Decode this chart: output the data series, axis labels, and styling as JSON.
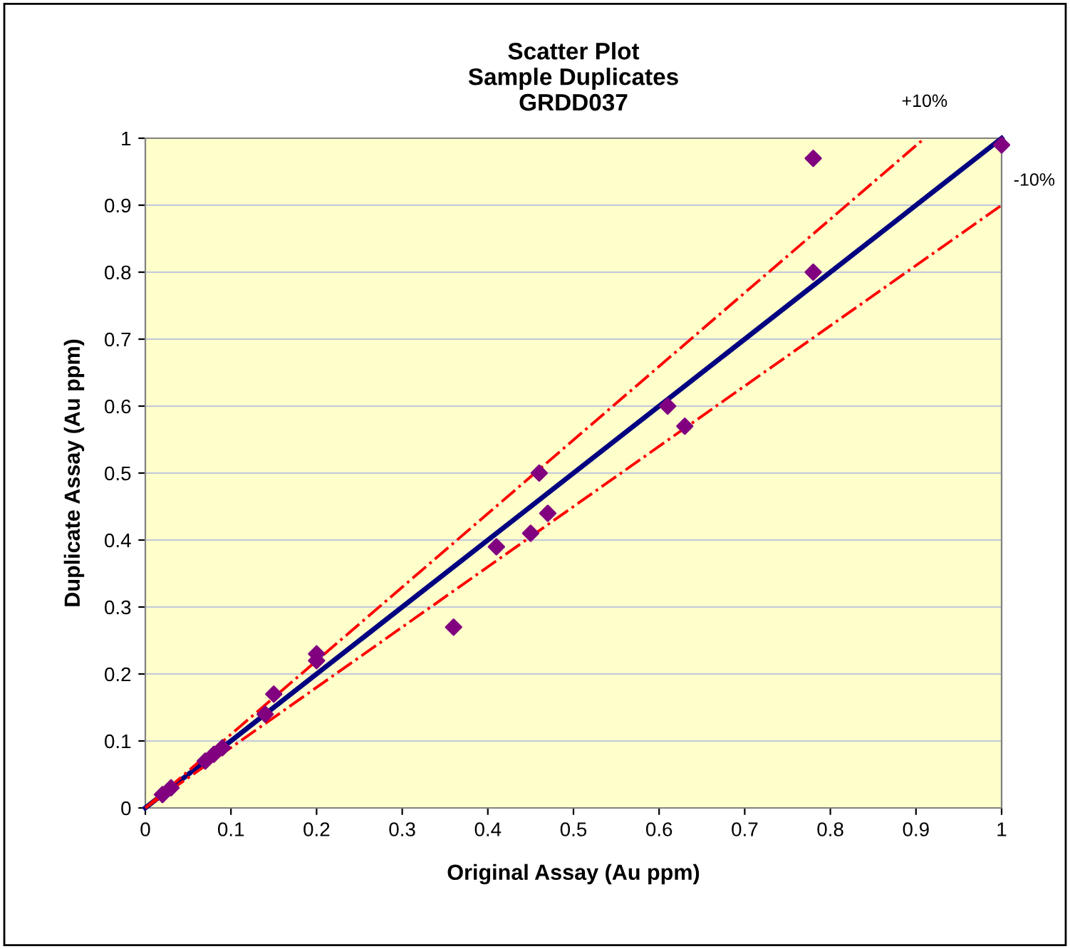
{
  "chart_data": {
    "type": "scatter",
    "title": "Scatter Plot\nSample Duplicates\nGRDD037",
    "xlabel": "Original Assay (Au ppm)",
    "ylabel": "Duplicate Assay (Au ppm)",
    "xlim": [
      0,
      1
    ],
    "ylim": [
      0,
      1
    ],
    "xticks": [
      0,
      0.1,
      0.2,
      0.3,
      0.4,
      0.5,
      0.6,
      0.7,
      0.8,
      0.9,
      1
    ],
    "yticks": [
      0,
      0.1,
      0.2,
      0.3,
      0.4,
      0.5,
      0.6,
      0.7,
      0.8,
      0.9,
      1
    ],
    "grid": "y",
    "legend": false,
    "series": [
      {
        "color": "#800080",
        "marker": "diamond",
        "x": [
          0.02,
          0.03,
          0.07,
          0.08,
          0.09,
          0.14,
          0.15,
          0.2,
          0.2,
          0.36,
          0.41,
          0.45,
          0.46,
          0.47,
          0.61,
          0.63,
          0.78,
          0.78,
          1.0
        ],
        "values": [
          0.02,
          0.03,
          0.07,
          0.08,
          0.09,
          0.14,
          0.17,
          0.22,
          0.23,
          0.27,
          0.39,
          0.41,
          0.5,
          0.44,
          0.6,
          0.57,
          0.8,
          0.97,
          0.99
        ]
      },
      {
        "type": "line",
        "color": "#000080",
        "line_style": "solid",
        "x": [
          0,
          1
        ],
        "values": [
          0,
          1
        ]
      },
      {
        "type": "line",
        "color": "#ff0000",
        "line_style": "dashdot",
        "x": [
          0,
          0.91
        ],
        "values": [
          0,
          1.0
        ]
      },
      {
        "type": "line",
        "color": "#ff0000",
        "line_style": "dashdot",
        "x": [
          0,
          1
        ],
        "values": [
          0,
          0.9
        ]
      }
    ],
    "annotations": [
      {
        "text": "+10%",
        "x": 0.91,
        "y": 1.0
      },
      {
        "text": "-10%",
        "x": 1,
        "y": 0.9
      }
    ]
  }
}
